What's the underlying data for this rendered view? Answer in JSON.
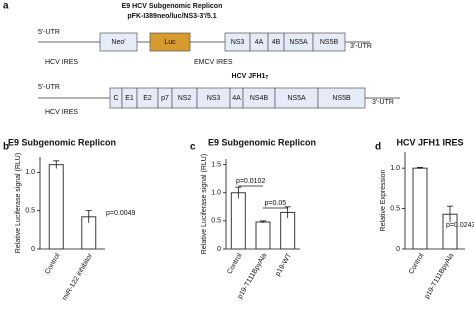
{
  "panels": [
    "a",
    "b",
    "c",
    "d"
  ],
  "diagrams": [
    {
      "title": "E9 HCV Subgenomic Replicon",
      "subtitle": "pFK-I389neo/luc/NS3-3'/5.1",
      "five_utr": "5'-UTR",
      "three_utr": "3'-UTR",
      "ires": "HCV IRES",
      "emcv": "EMCV IRES",
      "segments": [
        "Neo'",
        "Luc",
        "NS3",
        "4A",
        "4B",
        "NS5A",
        "NS5B"
      ]
    },
    {
      "title": "HCV JFH1",
      "title_subscript": "T",
      "five_utr": "5'-UTR",
      "three_utr": "3'-UTR",
      "ires": "HCV IRES",
      "segments": [
        "C",
        "E1",
        "E2",
        "p7",
        "NS2",
        "NS3",
        "4A",
        "NS4B",
        "NS5A",
        "NS5B"
      ]
    }
  ],
  "chart_data": [
    {
      "type": "bar",
      "title": "E9 Subgenomic Replicon",
      "ylabel": "Relative Luciferase signal (RLU)",
      "categories": [
        "Control",
        "miR-122 inhibitor"
      ],
      "values": [
        1.1,
        0.42
      ],
      "errors": [
        0.05,
        0.08
      ],
      "color": "#3a3a3a",
      "ylim": [
        0,
        1.2
      ],
      "yticks": [
        0,
        0.5,
        {
          "value": 1,
          "label": "1.0"
        }
      ],
      "annotations": [
        "p=0.0049"
      ]
    },
    {
      "type": "bar",
      "title": "E9 Subgenomic Replicon",
      "ylabel": "Relative Luciferase signal (RLU)",
      "categories": [
        "Control",
        "p19-T111BpyAla",
        "p19-WT"
      ],
      "values": [
        1.0,
        0.48,
        0.65
      ],
      "errors": [
        0.1,
        0.02,
        0.1
      ],
      "color": "#3a3a3a",
      "ylim": [
        0,
        1.6
      ],
      "yticks": [
        0,
        0.5,
        {
          "value": 1,
          "label": "1.0"
        },
        1.5
      ],
      "annotations": [
        "p=0.0102",
        "p=0.05"
      ]
    },
    {
      "type": "bar",
      "title": "HCV JFH1 IRES",
      "ylabel": "Relative Expression",
      "categories": [
        "Control",
        "p19-T111BpyAla"
      ],
      "values": [
        1.0,
        0.43
      ],
      "errors": [
        0.01,
        0.1
      ],
      "color": "#3a3a3a",
      "ylim": [
        0,
        1.2
      ],
      "yticks": [
        0,
        0.5,
        {
          "value": 1,
          "label": "1.0"
        }
      ],
      "annotations": [
        "p=0.0243"
      ]
    }
  ]
}
